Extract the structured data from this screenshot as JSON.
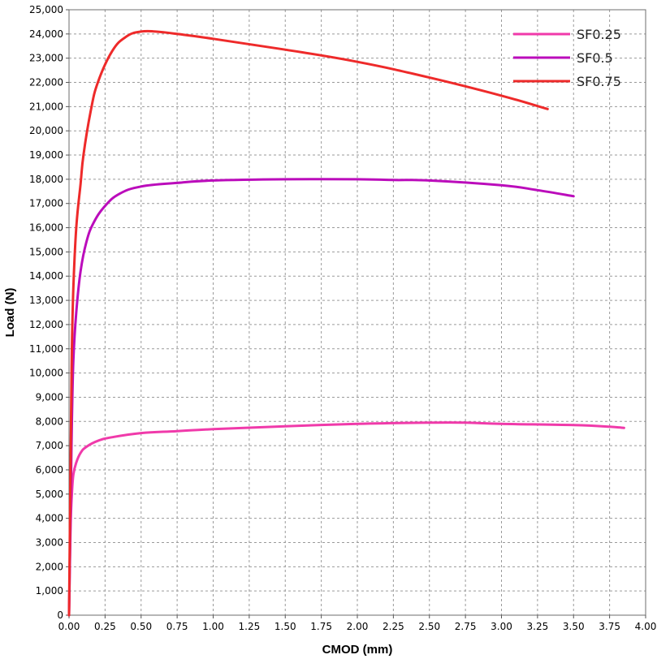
{
  "chart_data": {
    "type": "line",
    "xlabel": "CMOD (mm)",
    "ylabel": "Load (N)",
    "xlim": [
      0,
      4.0
    ],
    "ylim": [
      0,
      25000
    ],
    "x_ticks": [
      "0.00",
      "0.25",
      "0.50",
      "0.75",
      "1.00",
      "1.25",
      "1.50",
      "1.75",
      "2.00",
      "2.25",
      "2.50",
      "2.75",
      "3.00",
      "3.25",
      "3.50",
      "3.75",
      "4.00"
    ],
    "y_ticks": [
      "0",
      "1,000",
      "2,000",
      "3,000",
      "4,000",
      "5,000",
      "6,000",
      "7,000",
      "8,000",
      "9,000",
      "10,000",
      "11,000",
      "12,000",
      "13,000",
      "14,000",
      "15,000",
      "16,000",
      "17,000",
      "18,000",
      "19,000",
      "20,000",
      "21,000",
      "22,000",
      "23,000",
      "24,000",
      "25,000"
    ],
    "grid": true,
    "legend_position": "top-right",
    "series": [
      {
        "name": "SF0.25",
        "color": "#f03aaa",
        "x": [
          0,
          0.01,
          0.02,
          0.03,
          0.05,
          0.08,
          0.12,
          0.2,
          0.3,
          0.5,
          0.75,
          1.0,
          1.5,
          2.0,
          2.5,
          2.75,
          3.0,
          3.5,
          3.75,
          3.85
        ],
        "y": [
          0,
          3500,
          5000,
          5800,
          6300,
          6700,
          6950,
          7200,
          7350,
          7520,
          7600,
          7680,
          7800,
          7900,
          7950,
          7950,
          7900,
          7850,
          7780,
          7730
        ]
      },
      {
        "name": "SF0.5",
        "color": "#bb0cbb",
        "x": [
          0,
          0.01,
          0.02,
          0.03,
          0.05,
          0.08,
          0.12,
          0.17,
          0.25,
          0.35,
          0.5,
          0.75,
          1.0,
          1.5,
          2.0,
          2.25,
          2.5,
          3.0,
          3.25,
          3.5
        ],
        "y": [
          0,
          4000,
          8000,
          10500,
          12500,
          14200,
          15400,
          16200,
          16900,
          17400,
          17700,
          17850,
          17950,
          18000,
          18000,
          17970,
          17950,
          17750,
          17550,
          17300
        ]
      },
      {
        "name": "SF0.75",
        "color": "#ee2a2a",
        "x": [
          0,
          0.01,
          0.02,
          0.03,
          0.05,
          0.08,
          0.1,
          0.15,
          0.2,
          0.3,
          0.4,
          0.5,
          0.6,
          0.75,
          1.0,
          1.5,
          2.0,
          2.5,
          3.0,
          3.32
        ],
        "y": [
          0,
          6000,
          11000,
          13500,
          16000,
          17800,
          19000,
          20800,
          22000,
          23300,
          23900,
          24100,
          24100,
          24000,
          23800,
          23350,
          22850,
          22200,
          21450,
          20900
        ]
      }
    ]
  }
}
